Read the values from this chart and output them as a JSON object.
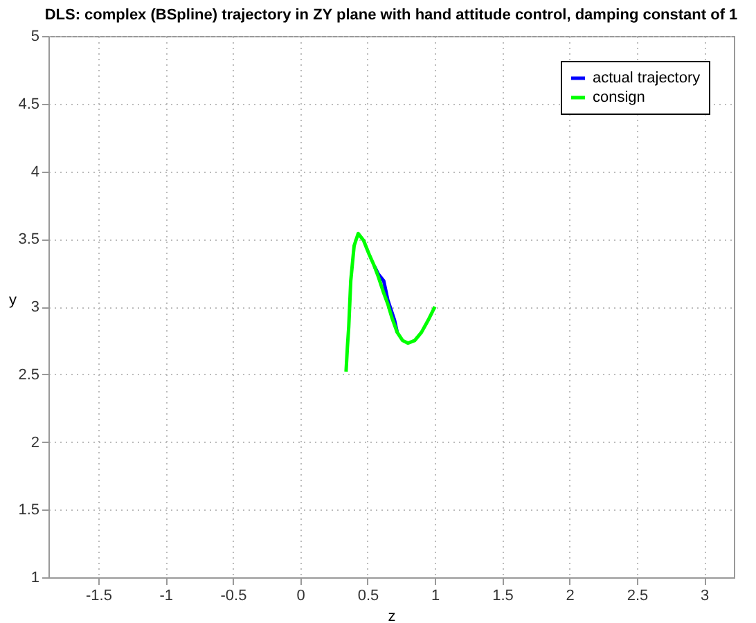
{
  "chart_data": {
    "type": "line",
    "title": "DLS: complex (BSpline) trajectory in ZY plane with hand attitude control, damping constant of 1",
    "xlabel": "z",
    "ylabel": "y",
    "xlim": [
      -1.87,
      3.22
    ],
    "xticks": [
      -1.5,
      -1,
      -0.5,
      0,
      0.5,
      1,
      1.5,
      2,
      2.5,
      3
    ],
    "ylim": [
      1,
      5
    ],
    "yticks": [
      1,
      1.5,
      2,
      2.5,
      3,
      3.5,
      4,
      4.5,
      5
    ],
    "grid": true,
    "legend": "top right",
    "line_style": "solid",
    "marker": "none",
    "series": [
      {
        "name": "actual trajectory",
        "color": "#0000ff",
        "x": [
          0.55,
          0.58,
          0.62,
          0.65,
          0.7,
          0.72
        ],
        "values": [
          3.3,
          3.24,
          3.19,
          3.05,
          2.9,
          2.81
        ]
      },
      {
        "name": "consign",
        "color": "#00ff00",
        "x": [
          0.34,
          0.35,
          0.36,
          0.375,
          0.4,
          0.43,
          0.47,
          0.51,
          0.55,
          0.58,
          0.62,
          0.65,
          0.68,
          0.72,
          0.76,
          0.8,
          0.85,
          0.9,
          0.95,
          1.0
        ],
        "values": [
          2.52,
          2.7,
          2.85,
          3.19,
          3.45,
          3.54,
          3.49,
          3.39,
          3.3,
          3.22,
          3.1,
          3.02,
          2.92,
          2.81,
          2.75,
          2.73,
          2.75,
          2.81,
          2.9,
          3.0
        ]
      }
    ]
  }
}
